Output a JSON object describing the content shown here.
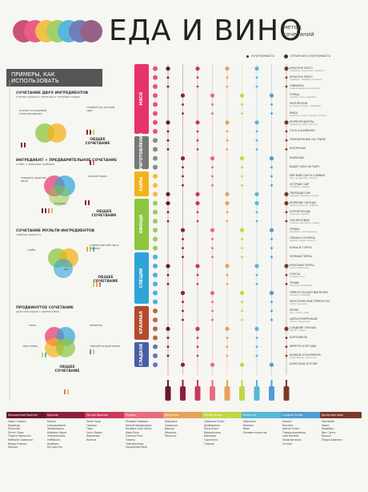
{
  "title": "ЕДА И ВИНО",
  "subtitle": [
    "метод",
    "сочетаний"
  ],
  "legend": {
    "good": "сочетаемость",
    "perfect": "отличная сочетаемость"
  },
  "left_panel": {
    "title": "ПРИМЕРЫ, КАК ИСПОЛЬЗОВАТЬ",
    "examples": [
      {
        "title": "СОЧЕТАНИЕ ДВУХ ИНГРЕДИЕНТОВ",
        "sub": "утиная грудка с зеленью и голубым сыром",
        "labels": [
          "утиное со специями (зеленые овощи)",
          "голубой сыр (острый сыр)"
        ],
        "common": "ОБЩЕЕ СОЧЕТАНИЕ"
      },
      {
        "title": "ИНГРЕДИЕНТ + ПРЕДВАРИТЕЛЬНОЕ СОЧЕТАНИЕ",
        "sub": "стейк с черными грибами",
        "labels": [
          "говядина (красное мясо)",
          "черный перец",
          "(специи)"
        ],
        "common": "ОБЩЕЕ СОЧЕТАНИЕ"
      },
      {
        "title": "СОЧЕТАНИЕ МУЛЬТИ-ИНГРЕДИЕНТОВ",
        "sub": "грибное ризотто",
        "labels": [
          "грибы",
          "сливки (мягкий сыр и сливки)",
          "рис"
        ],
        "common": "ОБЩЕЕ СОЧЕТАНИЕ"
      },
      {
        "title": "ПРОДВИНУТОЕ СОЧЕТАНИЕ",
        "sub": "красный карри с креветками",
        "labels": [
          "кокос",
          "креветки",
          "чили перец",
          "тайский острый перец"
        ],
        "common": "ОБЩЕЕ СОЧЕТАНИЕ"
      }
    ]
  },
  "categories": [
    {
      "name": "МЯСО",
      "color": "#e8336a",
      "foods": [
        {
          "label": "КРАСНОЕ МЯСО",
          "sub": "(говядина, баранина, оленина)"
        },
        {
          "label": "КРАСНОЕ МЯСО",
          "sub": "(свинина, говядина, ветчина)"
        },
        {
          "label": "СВИНИНА",
          "sub": "(свиная вырезка, копченое)"
        },
        {
          "label": "ПТИЦА",
          "sub": "(курица, утка, индейка)"
        },
        {
          "label": "МОЛЛЮСКИ",
          "sub": "(устрицы, мидии, гребешки)"
        },
        {
          "label": "РЫБА",
          "sub": "(морская, тунец, форель, лосось)"
        },
        {
          "label": "МОРЕПРОДУКТЫ",
          "sub": "(креветки, краб, лангуст)"
        },
        {
          "label": "ГУСЬ И БАРБЕКЮ",
          "sub": ""
        }
      ]
    },
    {
      "name": "ПРИГОТОВЛЕНИЕ",
      "color": "#777777",
      "foods": [
        {
          "label": "ОБЖАРЕННЫЕ НА ГРИЛЕ",
          "sub": ""
        },
        {
          "label": "КОПЧЕНЫЕ",
          "sub": ""
        },
        {
          "label": "ЖАРЕНЫЕ",
          "sub": ""
        },
        {
          "label": "ВАДЕТ ИЛИ НА ПАРУ",
          "sub": ""
        }
      ]
    },
    {
      "name": "СЫРЫ",
      "color": "#f3b21b",
      "foods": [
        {
          "label": "МЯГКИЙ СЫР И СЛИВКИ",
          "sub": "(бри, моцарелла, сливки)"
        },
        {
          "label": "ОСТРЫЙ СЫР",
          "sub": "(голубой, рокфор)"
        },
        {
          "label": "ТВЕРДЫЙ СЫР",
          "sub": "(чеддер, пармезан, гауда)"
        }
      ]
    },
    {
      "name": "ОВОЩИ",
      "color": "#8cc63e",
      "foods": [
        {
          "label": "ЗЕЛЕНЫЕ ОВОЩИ",
          "sub": "(зеленая фасоль, спаржа)"
        },
        {
          "label": "КОРНЕПЛОДЫ",
          "sub": "(морковь, свекла)"
        },
        {
          "label": "ПАСЛЕНОВЫЕ",
          "sub": "(томаты, баклажан, перец)"
        },
        {
          "label": "ГРИБЫ",
          "sub": "(трюфель, шампиньоны)"
        },
        {
          "label": "ОРЕХИ И СЕМЕНА",
          "sub": "(арахис, орехи, кунжут)"
        },
        {
          "label": "БОБЫ И ГОРОХ",
          "sub": ""
        }
      ]
    },
    {
      "name": "СПЕЦИИ",
      "color": "#2ea5d8",
      "foods": [
        {
          "label": "ЧЕРНЫЙ ПЕРЕЦ",
          "sub": ""
        },
        {
          "label": "КРАСНЫЙ ПЕРЕЦ",
          "sub": "(чили, халапеньо)"
        },
        {
          "label": "СОУСЫ",
          "sub": "(острый соус)"
        },
        {
          "label": "ТРАВЫ",
          "sub": "(базилик, розмарин)"
        },
        {
          "label": "ПРЯНОСТИ ДЛЯ ВЫПЕЧКИ",
          "sub": "(корица, гвоздика)"
        },
        {
          "label": "ЭКЗОТИЧЕСКИЕ ПРЯНОСТИ",
          "sub": "(кари, куркума)"
        }
      ]
    },
    {
      "name": "КРАХМАЛ",
      "color": "#b34a2b",
      "foods": [
        {
          "label": "ЗЕРНЕ",
          "sub": "(рис, паста, хлеб)"
        },
        {
          "label": "ЦЕЛЬНОЗЕРНОВЫЕ",
          "sub": "(киноа, бурый рис)"
        },
        {
          "label": "СЛАДКИЕ ОВОЩИ",
          "sub": "(батат, тыква)"
        },
        {
          "label": "КАРТОФЕЛЬ",
          "sub": ""
        }
      ]
    },
    {
      "name": "СЛАДКОЕ",
      "color": "#4a5ea8",
      "foods": [
        {
          "label": "ФРУКТЫ И ЯГОДЫ",
          "sub": ""
        },
        {
          "label": "ВАНИЛЬ И КАРАМЕЛЬ",
          "sub": "(крем-брюле, пирожное)"
        },
        {
          "label": "ШОКОЛАД И КОФЕ",
          "sub": ""
        }
      ]
    }
  ],
  "wines": [
    {
      "name": "Насыщенное Красное",
      "color": "#6b1a2a",
      "items": [
        "Сира / Шираз",
        "Мурведр",
        "Пинотаж",
        "Петит Сира",
        "Турига Насьонал",
        "Каберне Совиньон",
        "Вердо Бланко",
        "Мерлот"
      ]
    },
    {
      "name": "Красное",
      "color": "#8e1f3a",
      "items": [
        "Мерло",
        "Санджиовезе",
        "Зинфандель",
        "Каберне Фран",
        "Темпранильо",
        "Неббиоло",
        "Барбера",
        "Кот-дю-Рон"
      ]
    },
    {
      "name": "Легкое Красное",
      "color": "#c93a5b",
      "items": [
        "Пино Нуар",
        "Гренаш",
        "Гамэ",
        "Сент-Лоран",
        "Карменер",
        "Кьянти"
      ]
    },
    {
      "name": "Розовое",
      "color": "#e86c7d",
      "items": [
        "Розовое Прованс",
        "Белый Зинфандель",
        "Розовое Loire Valley",
        "Кава Розе",
        "Гренаш Розе",
        "Тавель",
        "Темпранильо",
        "Sangiovese Rosé"
      ]
    },
    {
      "name": "Десертное",
      "color": "#e8a25a",
      "items": [
        "Шардоне",
        "Совиньон",
        "Вионье",
        "Марсала",
        "Москато"
      ]
    },
    {
      "name": "Легкое Белое",
      "color": "#c3d64a",
      "items": [
        "Совиньон Блан",
        "Альбариньо",
        "Пино Блан",
        "Верментино",
        "Мюскаде",
        "Гарганега",
        "Грюнер"
      ]
    },
    {
      "name": "Игристое",
      "color": "#54b9d6",
      "items": [
        "Шампань",
        "Креман",
        "Кава",
        "Розовое игристое"
      ]
    },
    {
      "name": "Сладкое Белое",
      "color": "#4e9ed6",
      "items": [
        "Москат",
        "Рислинг",
        "Шенен Блан",
        "Гевюрцтраминер",
        "Late Harvest",
        "Ледяное вино",
        "Сотерн"
      ]
    },
    {
      "name": "Десертное вино",
      "color": "#7a3a2a",
      "items": [
        "Портвейн",
        "Херес",
        "Мадейра",
        "Вин Санто",
        "Мускат",
        "Педро Хименес"
      ]
    }
  ]
}
